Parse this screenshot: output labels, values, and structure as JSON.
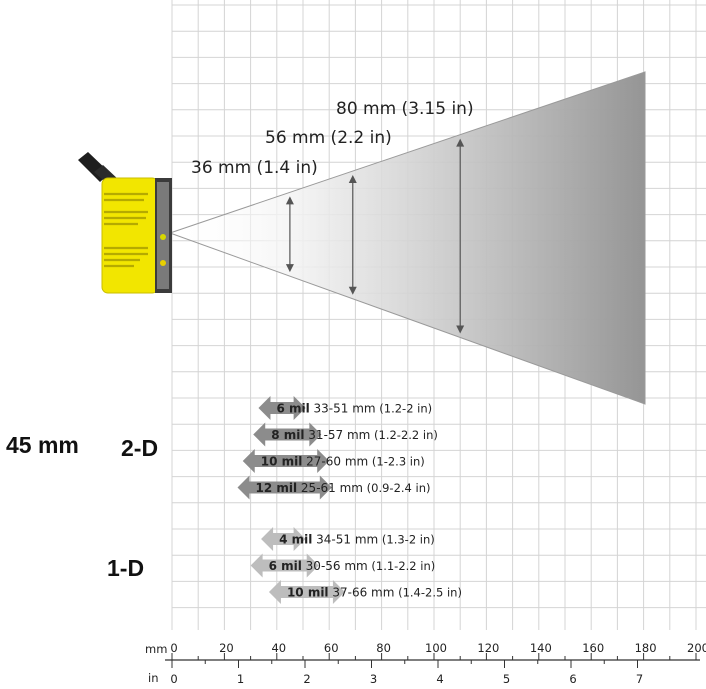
{
  "colors": {
    "grid": "#d4d4d4",
    "camera_body": "#f2e600",
    "camera_dark": "#222222",
    "beam_start": "#ffffff",
    "beam_end": "#9a9a9a",
    "arrow_dark": "#8c8c8c",
    "arrow_light": "#bdbdbd"
  },
  "fov_labels": [
    {
      "text": "36 mm (1.4 in)",
      "distance_mm": 45
    },
    {
      "text": "56 mm (2.2 in)",
      "distance_mm": 69
    },
    {
      "text": "80 mm (3.15 in)",
      "distance_mm": 110
    }
  ],
  "left_label": "45 mm",
  "sections": {
    "two_d": {
      "label": "2-D",
      "rows": [
        {
          "mil": "6 mil",
          "range": "33-51 mm",
          "inches": "(1.2-2 in)",
          "min_mm": 33,
          "max_mm": 51
        },
        {
          "mil": "8 mil",
          "range": "31-57 mm",
          "inches": "(1.2-2.2 in)",
          "min_mm": 31,
          "max_mm": 57
        },
        {
          "mil": "10 mil",
          "range": "27-60 mm",
          "inches": "(1-2.3 in)",
          "min_mm": 27,
          "max_mm": 60
        },
        {
          "mil": "12 mil",
          "range": "25-61 mm",
          "inches": "(0.9-2.4 in)",
          "min_mm": 25,
          "max_mm": 61
        }
      ]
    },
    "one_d": {
      "label": "1-D",
      "rows": [
        {
          "mil": "4 mil",
          "range": "34-51 mm",
          "inches": "(1.3-2 in)",
          "min_mm": 34,
          "max_mm": 51
        },
        {
          "mil": "6 mil",
          "range": "30-56 mm",
          "inches": "(1.1-2.2 in)",
          "min_mm": 30,
          "max_mm": 56
        },
        {
          "mil": "10 mil",
          "range": "37-66 mm",
          "inches": "(1.4-2.5 in)",
          "min_mm": 37,
          "max_mm": 66
        }
      ]
    }
  },
  "axes": {
    "mm": {
      "unit": "mm",
      "ticks": [
        0,
        20,
        40,
        60,
        80,
        100,
        120,
        140,
        160,
        180,
        200
      ]
    },
    "in": {
      "unit": "in",
      "ticks": [
        0,
        1,
        2,
        3,
        4,
        5,
        6,
        7
      ]
    }
  }
}
